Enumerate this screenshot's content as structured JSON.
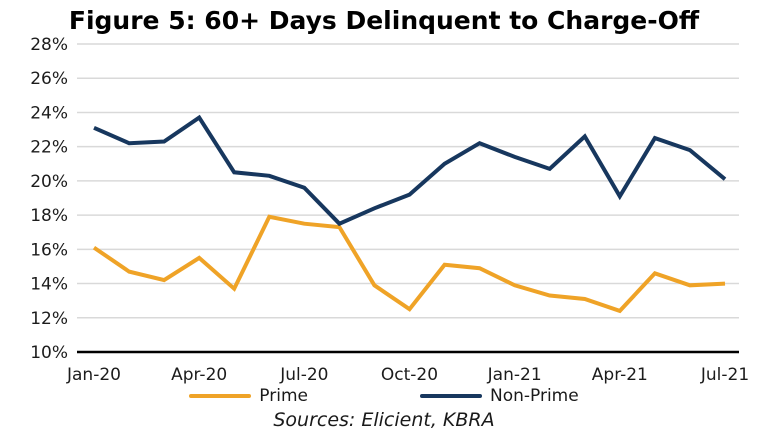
{
  "title": "Figure 5: 60+ Days Delinquent to Charge-Off",
  "footer": {
    "sources": "Sources: Elicient, KBRA"
  },
  "colors": {
    "prime": "#EFA327",
    "non_prime": "#17375E",
    "gridline": "#D9D9D9",
    "axis": "#000000",
    "text": "#1C1C1C"
  },
  "chart_data": {
    "type": "line",
    "title": "Figure 5: 60+ Days Delinquent to Charge-Off",
    "x": [
      "Jan-20",
      "Feb-20",
      "Mar-20",
      "Apr-20",
      "May-20",
      "Jun-20",
      "Jul-20",
      "Aug-20",
      "Sep-20",
      "Oct-20",
      "Nov-20",
      "Dec-20",
      "Jan-21",
      "Feb-21",
      "Mar-21",
      "Apr-21",
      "May-21",
      "Jun-21",
      "Jul-21"
    ],
    "x_tick_labels": [
      "Jan-20",
      "Apr-20",
      "Jul-20",
      "Oct-20",
      "Jan-21",
      "Apr-21",
      "Jul-21"
    ],
    "xlabel": "",
    "ylabel": "",
    "ylim": [
      10,
      28
    ],
    "ytick_step": 2,
    "y_tick_suffix": "%",
    "grid": true,
    "legend_position": "bottom",
    "series": [
      {
        "name": "Prime",
        "color": "#EFA327",
        "values": [
          16.1,
          14.7,
          14.2,
          15.5,
          13.7,
          17.9,
          17.5,
          17.3,
          13.9,
          12.5,
          15.1,
          14.9,
          13.9,
          13.3,
          13.1,
          12.4,
          14.6,
          13.9,
          14.0
        ]
      },
      {
        "name": "Non-Prime",
        "color": "#17375E",
        "values": [
          23.1,
          22.2,
          22.3,
          23.7,
          20.5,
          20.3,
          19.6,
          17.5,
          18.4,
          19.2,
          21.0,
          22.2,
          21.4,
          20.7,
          22.6,
          19.1,
          22.5,
          21.8,
          20.1
        ]
      }
    ]
  }
}
